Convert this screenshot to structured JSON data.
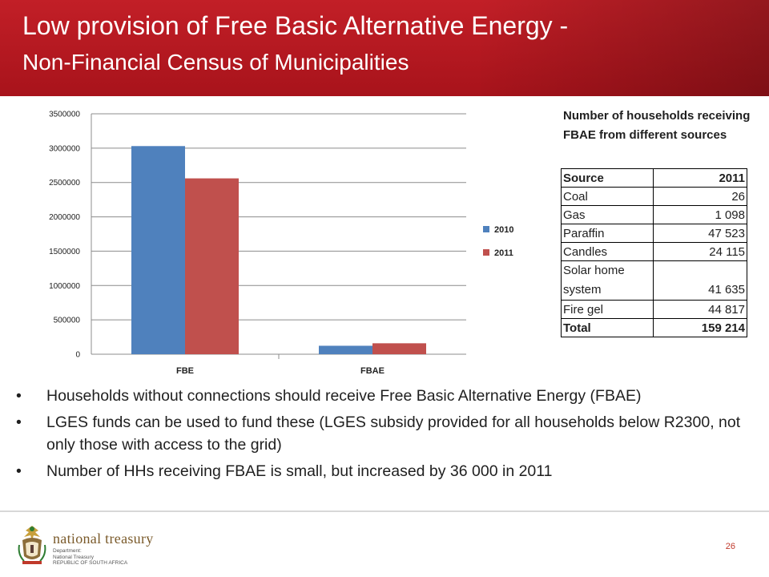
{
  "title": {
    "line1": "Low provision of Free Basic Alternative Energy -",
    "line2": "Non-Financial Census of Municipalities"
  },
  "chart_data": {
    "type": "bar",
    "categories": [
      "FBE",
      "FBAE"
    ],
    "series": [
      {
        "name": "2010",
        "values": [
          3030000,
          123000
        ],
        "color": "#4f81bd"
      },
      {
        "name": "2011",
        "values": [
          2560000,
          159214
        ],
        "color": "#c0504d"
      }
    ],
    "ylim": [
      0,
      3500000
    ],
    "yticks": [
      "0",
      "500000",
      "1000000",
      "1500000",
      "2000000",
      "2500000",
      "3000000",
      "3500000"
    ],
    "grid": true,
    "legend_position": "right"
  },
  "table": {
    "caption": "Number of households receiving FBAE from different sources",
    "headers": [
      "Source",
      "2011"
    ],
    "rows": [
      [
        "Coal",
        "26"
      ],
      [
        "Gas",
        "1 098"
      ],
      [
        "Paraffin",
        "47 523"
      ],
      [
        "Candles",
        "24 115"
      ],
      [
        "Solar home system",
        "41 635"
      ],
      [
        "Fire gel",
        "44 817"
      ]
    ],
    "total": [
      "Total",
      "159 214"
    ]
  },
  "bullets": [
    "Households without connections should receive Free Basic Alternative Energy (FBAE)",
    "LGES funds can be used to fund these (LGES subsidy provided for all households below R2300, not only those with access to the grid)",
    "Number of HHs receiving FBAE is small, but increased by 36 000 in 2011"
  ],
  "footer": {
    "logo_name": "national treasury",
    "logo_dept": [
      "Department:",
      "National Treasury",
      "REPUBLIC OF SOUTH AFRICA"
    ],
    "page_number": "26"
  }
}
